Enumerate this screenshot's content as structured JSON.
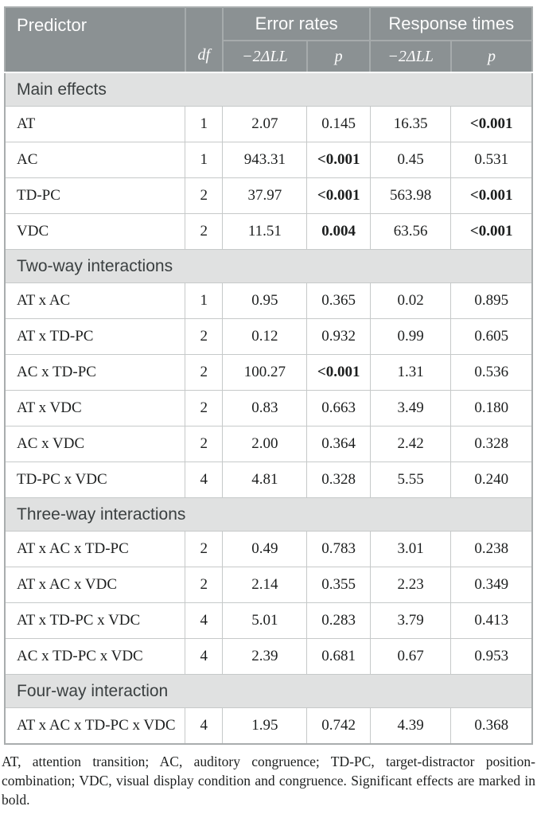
{
  "colors": {
    "header_bg": "#8b9193",
    "header_text": "#fdfdfd",
    "header_divider": "#a6abac",
    "section_bg": "#e0e1e1",
    "section_text": "#3b4041",
    "cell_border": "#c6c9c9",
    "outer_border": "#a9adae"
  },
  "table": {
    "header": {
      "predictor": "Predictor",
      "df": "df",
      "error_rates": "Error rates",
      "response_times": "Response times",
      "ll": "−2ΔLL",
      "p": "p"
    },
    "sections": [
      {
        "title": "Main effects",
        "rows": [
          {
            "predictor": "AT",
            "df": "1",
            "er_ll": "2.07",
            "er_p": "0.145",
            "er_p_bold": false,
            "rt_ll": "16.35",
            "rt_p": "<0.001",
            "rt_p_bold": true
          },
          {
            "predictor": "AC",
            "df": "1",
            "er_ll": "943.31",
            "er_p": "<0.001",
            "er_p_bold": true,
            "rt_ll": "0.45",
            "rt_p": "0.531",
            "rt_p_bold": false
          },
          {
            "predictor": "TD-PC",
            "df": "2",
            "er_ll": "37.97",
            "er_p": "<0.001",
            "er_p_bold": true,
            "rt_ll": "563.98",
            "rt_p": "<0.001",
            "rt_p_bold": true
          },
          {
            "predictor": "VDC",
            "df": "2",
            "er_ll": "11.51",
            "er_p": "0.004",
            "er_p_bold": true,
            "rt_ll": "63.56",
            "rt_p": "<0.001",
            "rt_p_bold": true
          }
        ]
      },
      {
        "title": "Two-way interactions",
        "rows": [
          {
            "predictor": "AT x AC",
            "df": "1",
            "er_ll": "0.95",
            "er_p": "0.365",
            "er_p_bold": false,
            "rt_ll": "0.02",
            "rt_p": "0.895",
            "rt_p_bold": false
          },
          {
            "predictor": "AT x TD-PC",
            "df": "2",
            "er_ll": "0.12",
            "er_p": "0.932",
            "er_p_bold": false,
            "rt_ll": "0.99",
            "rt_p": "0.605",
            "rt_p_bold": false
          },
          {
            "predictor": "AC x TD-PC",
            "df": "2",
            "er_ll": "100.27",
            "er_p": "<0.001",
            "er_p_bold": true,
            "rt_ll": "1.31",
            "rt_p": "0.536",
            "rt_p_bold": false
          },
          {
            "predictor": "AT x VDC",
            "df": "2",
            "er_ll": "0.83",
            "er_p": "0.663",
            "er_p_bold": false,
            "rt_ll": "3.49",
            "rt_p": "0.180",
            "rt_p_bold": false
          },
          {
            "predictor": "AC x VDC",
            "df": "2",
            "er_ll": "2.00",
            "er_p": "0.364",
            "er_p_bold": false,
            "rt_ll": "2.42",
            "rt_p": "0.328",
            "rt_p_bold": false
          },
          {
            "predictor": "TD-PC x VDC",
            "df": "4",
            "er_ll": "4.81",
            "er_p": "0.328",
            "er_p_bold": false,
            "rt_ll": "5.55",
            "rt_p": "0.240",
            "rt_p_bold": false
          }
        ]
      },
      {
        "title": "Three-way interactions",
        "rows": [
          {
            "predictor": "AT x AC x TD-PC",
            "df": "2",
            "er_ll": "0.49",
            "er_p": "0.783",
            "er_p_bold": false,
            "rt_ll": "3.01",
            "rt_p": "0.238",
            "rt_p_bold": false
          },
          {
            "predictor": "AT x AC x VDC",
            "df": "2",
            "er_ll": "2.14",
            "er_p": "0.355",
            "er_p_bold": false,
            "rt_ll": "2.23",
            "rt_p": "0.349",
            "rt_p_bold": false
          },
          {
            "predictor": "AT x TD-PC x VDC",
            "df": "4",
            "er_ll": "5.01",
            "er_p": "0.283",
            "er_p_bold": false,
            "rt_ll": "3.79",
            "rt_p": "0.413",
            "rt_p_bold": false
          },
          {
            "predictor": "AC x TD-PC x VDC",
            "df": "4",
            "er_ll": "2.39",
            "er_p": "0.681",
            "er_p_bold": false,
            "rt_ll": "0.67",
            "rt_p": "0.953",
            "rt_p_bold": false
          }
        ]
      },
      {
        "title": "Four-way interaction",
        "rows": [
          {
            "predictor": "AT x AC x TD-PC x VDC",
            "df": "4",
            "er_ll": "1.95",
            "er_p": "0.742",
            "er_p_bold": false,
            "rt_ll": "4.39",
            "rt_p": "0.368",
            "rt_p_bold": false
          }
        ]
      }
    ],
    "footnote": "AT, attention transition; AC, auditory congruence; TD-PC, target-distractor position-combination; VDC, visual display condition and congruence. Significant effects are marked in bold."
  }
}
